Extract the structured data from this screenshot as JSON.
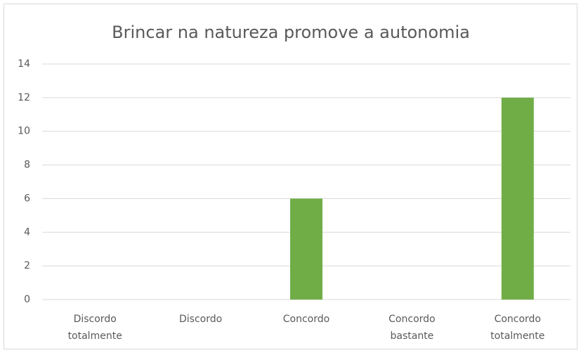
{
  "chart_data": {
    "type": "bar",
    "title": "Brincar na natureza promove a autonomia",
    "categories": [
      "Discordo totalmente",
      "Discordo",
      "Concordo",
      "Concordo bastante",
      "Concordo totalmente"
    ],
    "values": [
      0,
      0,
      6,
      0,
      12
    ],
    "color": "#70ad47",
    "ylim": [
      0,
      14
    ],
    "yticks": [
      0,
      2,
      4,
      6,
      8,
      10,
      12,
      14
    ],
    "grid": true
  }
}
